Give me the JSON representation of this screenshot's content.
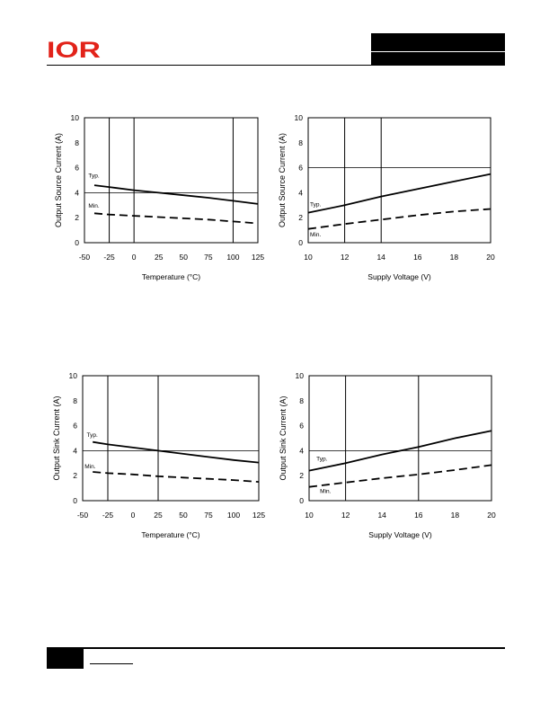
{
  "brand": {
    "logo_text": "IOR",
    "color": "#e2231a"
  },
  "charts": [
    {
      "id": "c1",
      "type": "line",
      "xlabel": "Temperature (°C)",
      "ylabel": "Output Source Current (A)",
      "x_ticks": [
        -50,
        -25,
        0,
        25,
        50,
        75,
        100,
        125
      ],
      "xlim": [
        -50,
        125
      ],
      "y_ticks": [
        0,
        2,
        4,
        6,
        8,
        10
      ],
      "ylim": [
        0,
        10
      ],
      "v_grid": [
        -25,
        0,
        100
      ],
      "h_grid": [
        4
      ],
      "annotations": [
        {
          "text": "Typ.",
          "x": -46,
          "y": 5.2
        },
        {
          "text": "Min.",
          "x": -46,
          "y": 2.8
        }
      ],
      "series": [
        {
          "key": "typ",
          "dashed": false,
          "x": [
            -40,
            -25,
            0,
            25,
            50,
            75,
            100,
            125
          ],
          "y": [
            4.6,
            4.45,
            4.2,
            4.0,
            3.8,
            3.6,
            3.35,
            3.1
          ]
        },
        {
          "key": "min",
          "dashed": true,
          "x": [
            -40,
            -25,
            0,
            25,
            50,
            75,
            100,
            125
          ],
          "y": [
            2.35,
            2.25,
            2.15,
            2.05,
            1.95,
            1.85,
            1.7,
            1.55
          ]
        }
      ]
    },
    {
      "id": "c2",
      "type": "line",
      "xlabel": "Supply Voltage (V)",
      "ylabel": "Output Source Current (A)",
      "x_ticks": [
        10,
        12,
        14,
        16,
        18,
        20
      ],
      "xlim": [
        10,
        20
      ],
      "y_ticks": [
        0,
        2,
        4,
        6,
        8,
        10
      ],
      "ylim": [
        0,
        10
      ],
      "v_grid": [
        12,
        14
      ],
      "h_grid": [
        6
      ],
      "annotations": [
        {
          "text": "Typ.",
          "x": 10.1,
          "y": 2.9
        },
        {
          "text": "Min.",
          "x": 10.1,
          "y": 0.5
        }
      ],
      "series": [
        {
          "key": "typ",
          "dashed": false,
          "x": [
            10,
            12,
            14,
            16,
            18,
            20
          ],
          "y": [
            2.4,
            3.0,
            3.7,
            4.3,
            4.9,
            5.5
          ]
        },
        {
          "key": "min",
          "dashed": true,
          "x": [
            10,
            12,
            14,
            16,
            18,
            20
          ],
          "y": [
            1.1,
            1.5,
            1.85,
            2.2,
            2.5,
            2.7
          ]
        }
      ]
    },
    {
      "id": "c3",
      "type": "line",
      "xlabel": "Temperature (°C)",
      "ylabel": "Output Sink Current (A)",
      "x_ticks": [
        -50,
        -25,
        0,
        25,
        50,
        75,
        100,
        125
      ],
      "xlim": [
        -50,
        125
      ],
      "y_ticks": [
        0,
        2,
        4,
        6,
        8,
        10
      ],
      "ylim": [
        0,
        10
      ],
      "v_grid": [
        -25,
        25
      ],
      "h_grid": [
        4
      ],
      "annotations": [
        {
          "text": "Typ.",
          "x": -46,
          "y": 5.1
        },
        {
          "text": "Min.",
          "x": -48,
          "y": 2.6
        }
      ],
      "series": [
        {
          "key": "typ",
          "dashed": false,
          "x": [
            -40,
            -25,
            0,
            25,
            50,
            75,
            100,
            125
          ],
          "y": [
            4.7,
            4.5,
            4.25,
            4.0,
            3.75,
            3.5,
            3.25,
            3.05
          ]
        },
        {
          "key": "min",
          "dashed": true,
          "x": [
            -40,
            -25,
            0,
            25,
            50,
            75,
            100,
            125
          ],
          "y": [
            2.3,
            2.2,
            2.1,
            1.95,
            1.85,
            1.75,
            1.65,
            1.5
          ]
        }
      ]
    },
    {
      "id": "c4",
      "type": "line",
      "xlabel": "Supply Voltage (V)",
      "ylabel": "Output Sink Current (A)",
      "x_ticks": [
        10,
        12,
        14,
        16,
        18,
        20
      ],
      "xlim": [
        10,
        20
      ],
      "y_ticks": [
        0,
        2,
        4,
        6,
        8,
        10
      ],
      "ylim": [
        0,
        10
      ],
      "v_grid": [
        12,
        16
      ],
      "h_grid": [
        4
      ],
      "annotations": [
        {
          "text": "Typ.",
          "x": 10.4,
          "y": 3.2
        },
        {
          "text": "Min.",
          "x": 10.6,
          "y": 0.6
        }
      ],
      "series": [
        {
          "key": "typ",
          "dashed": false,
          "x": [
            10,
            12,
            14,
            16,
            18,
            20
          ],
          "y": [
            2.4,
            3.0,
            3.7,
            4.3,
            5.0,
            5.6
          ]
        },
        {
          "key": "min",
          "dashed": true,
          "x": [
            10,
            12,
            14,
            16,
            18,
            20
          ],
          "y": [
            1.1,
            1.45,
            1.8,
            2.1,
            2.45,
            2.85
          ]
        }
      ]
    }
  ]
}
